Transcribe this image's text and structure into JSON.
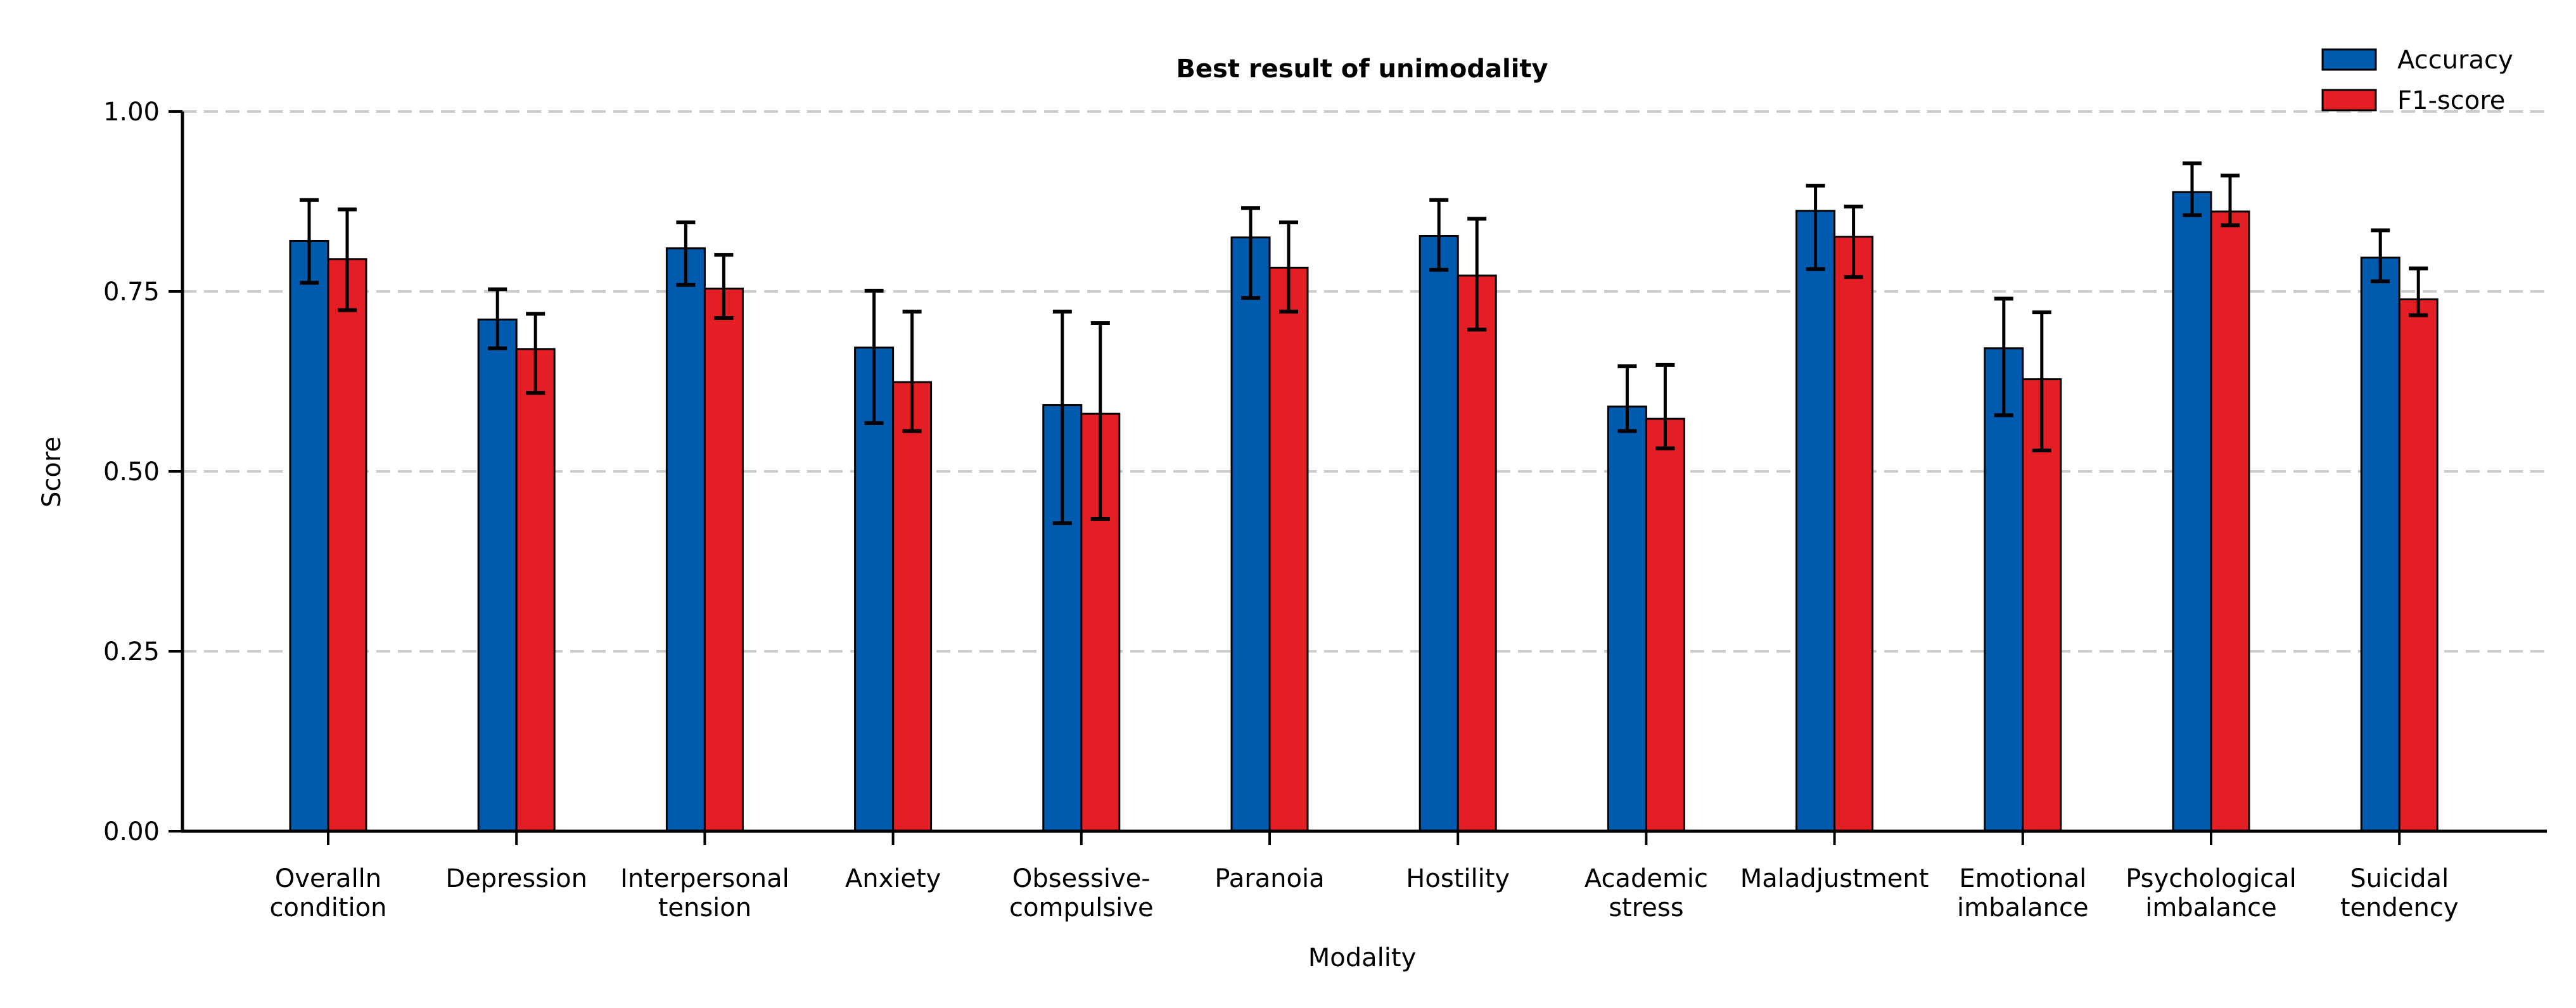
{
  "chart_data": {
    "type": "bar",
    "title": "Best result of unimodality",
    "xlabel": "Modality",
    "ylabel": "Score",
    "ylim": [
      0,
      1
    ],
    "yticks": [
      "0.00",
      "0.25",
      "0.50",
      "0.75",
      "1.00"
    ],
    "grid": "y-dashed",
    "legend_position": "top-right",
    "categories": [
      [
        "Overalln",
        "condition"
      ],
      [
        "Depression"
      ],
      [
        "Interpersonal",
        "tension"
      ],
      [
        "Anxiety"
      ],
      [
        "Obsessive-",
        "compulsive"
      ],
      [
        "Paranoia"
      ],
      [
        "Hostility"
      ],
      [
        "Academic",
        "stress"
      ],
      [
        "Maladjustment"
      ],
      [
        "Emotional",
        "imbalance"
      ],
      [
        "Psychological",
        "imbalance"
      ],
      [
        "Suicidal",
        "tendency"
      ]
    ],
    "series": [
      {
        "name": "Accuracy",
        "color": "#005bae",
        "values": [
          0.82,
          0.711,
          0.81,
          0.672,
          0.592,
          0.825,
          0.827,
          0.59,
          0.862,
          0.671,
          0.888,
          0.797
        ],
        "err_low": [
          0.762,
          0.671,
          0.759,
          0.567,
          0.428,
          0.741,
          0.78,
          0.556,
          0.781,
          0.578,
          0.856,
          0.764
        ],
        "err_high": [
          0.877,
          0.753,
          0.846,
          0.751,
          0.722,
          0.866,
          0.877,
          0.646,
          0.897,
          0.74,
          0.928,
          0.835
        ]
      },
      {
        "name": "F1-score",
        "color": "#e31e24",
        "values": [
          0.795,
          0.67,
          0.754,
          0.624,
          0.58,
          0.783,
          0.772,
          0.573,
          0.826,
          0.628,
          0.861,
          0.739
        ],
        "err_low": [
          0.724,
          0.609,
          0.713,
          0.556,
          0.434,
          0.722,
          0.697,
          0.532,
          0.77,
          0.529,
          0.842,
          0.717
        ],
        "err_high": [
          0.864,
          0.719,
          0.801,
          0.722,
          0.706,
          0.846,
          0.851,
          0.648,
          0.868,
          0.721,
          0.911,
          0.782
        ]
      }
    ]
  }
}
